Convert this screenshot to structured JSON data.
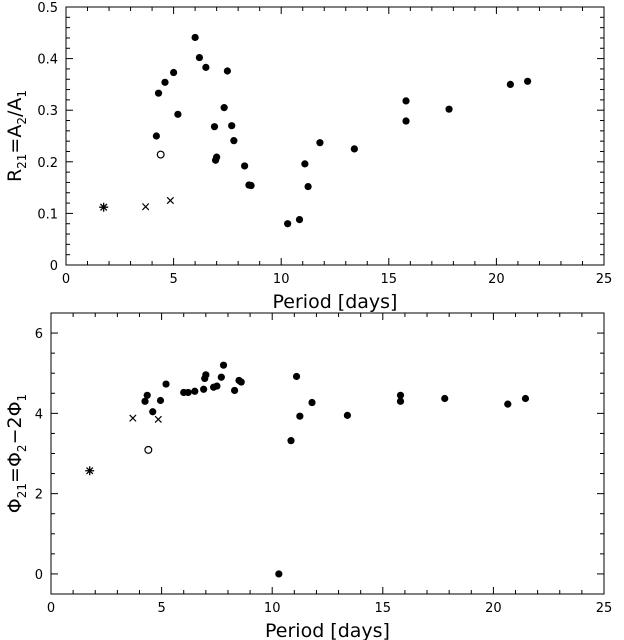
{
  "chart_data": [
    {
      "type": "scatter",
      "title": "",
      "xlabel": "Period [days]",
      "ylabel": {
        "parts": [
          [
            "R",
            ""
          ],
          [
            "21",
            "sub"
          ],
          [
            "=A",
            ""
          ],
          [
            "2",
            "sub"
          ],
          [
            "/A",
            ""
          ],
          [
            "1",
            "sub"
          ]
        ]
      },
      "xlim": [
        0,
        25
      ],
      "ylim": [
        0,
        0.5
      ],
      "xticks": [
        0,
        5,
        10,
        15,
        20,
        25
      ],
      "yticks": [
        0,
        0.1,
        0.2,
        0.3,
        0.4,
        0.5
      ],
      "xtick_labels": [
        "0",
        "5",
        "10",
        "15",
        "20",
        "25"
      ],
      "ytick_labels": [
        "0",
        "0.1",
        "0.2",
        "0.3",
        "0.4",
        "0.5"
      ],
      "grid": false,
      "series": [
        {
          "marker": "filled-circle",
          "points": [
            [
              4.2,
              0.25
            ],
            [
              4.3,
              0.333
            ],
            [
              4.6,
              0.354
            ],
            [
              5.0,
              0.373
            ],
            [
              5.2,
              0.292
            ],
            [
              6.0,
              0.441
            ],
            [
              6.2,
              0.402
            ],
            [
              6.5,
              0.383
            ],
            [
              6.9,
              0.268
            ],
            [
              6.95,
              0.203
            ],
            [
              7.0,
              0.209
            ],
            [
              7.35,
              0.305
            ],
            [
              7.5,
              0.376
            ],
            [
              7.7,
              0.27
            ],
            [
              7.8,
              0.241
            ],
            [
              8.3,
              0.192
            ],
            [
              8.5,
              0.155
            ],
            [
              8.6,
              0.154
            ],
            [
              10.3,
              0.08
            ],
            [
              10.85,
              0.088
            ],
            [
              11.1,
              0.196
            ],
            [
              11.25,
              0.152
            ],
            [
              11.8,
              0.237
            ],
            [
              13.4,
              0.225
            ],
            [
              15.8,
              0.318
            ],
            [
              15.8,
              0.279
            ],
            [
              17.8,
              0.302
            ],
            [
              20.65,
              0.35
            ],
            [
              21.45,
              0.356
            ]
          ]
        },
        {
          "marker": "open-circle",
          "points": [
            [
              4.4,
              0.214
            ]
          ]
        },
        {
          "marker": "cross",
          "points": [
            [
              3.7,
              0.113
            ],
            [
              4.85,
              0.125
            ]
          ]
        },
        {
          "marker": "star",
          "points": [
            [
              1.75,
              0.112
            ]
          ]
        }
      ]
    },
    {
      "type": "scatter",
      "title": "",
      "xlabel": "Period [days]",
      "ylabel": {
        "parts": [
          [
            "Φ",
            ""
          ],
          [
            "21",
            "sub"
          ],
          [
            "=Φ",
            ""
          ],
          [
            "2",
            "sub"
          ],
          [
            "−2Φ",
            ""
          ],
          [
            "1",
            "sub"
          ]
        ]
      },
      "xlim": [
        0,
        25
      ],
      "ylim": [
        -0.5,
        6.5
      ],
      "xticks": [
        0,
        5,
        10,
        15,
        20,
        25
      ],
      "yticks": [
        0,
        2,
        4,
        6
      ],
      "xtick_labels": [
        "0",
        "5",
        "10",
        "15",
        "20",
        "25"
      ],
      "ytick_labels": [
        "0",
        "2",
        "4",
        "6"
      ],
      "grid": false,
      "series": [
        {
          "marker": "filled-circle",
          "points": [
            [
              4.25,
              4.3
            ],
            [
              4.35,
              4.45
            ],
            [
              4.6,
              4.04
            ],
            [
              4.95,
              4.32
            ],
            [
              5.2,
              4.73
            ],
            [
              6.0,
              4.52
            ],
            [
              6.2,
              4.52
            ],
            [
              6.5,
              4.55
            ],
            [
              6.9,
              4.6
            ],
            [
              6.95,
              4.87
            ],
            [
              7.0,
              4.96
            ],
            [
              7.35,
              4.65
            ],
            [
              7.5,
              4.68
            ],
            [
              7.7,
              4.9
            ],
            [
              7.8,
              5.2
            ],
            [
              8.3,
              4.57
            ],
            [
              8.5,
              4.82
            ],
            [
              8.6,
              4.78
            ],
            [
              10.3,
              0.0
            ],
            [
              10.85,
              3.32
            ],
            [
              11.1,
              4.92
            ],
            [
              11.25,
              3.93
            ],
            [
              11.8,
              4.27
            ],
            [
              13.4,
              3.95
            ],
            [
              15.8,
              4.45
            ],
            [
              15.8,
              4.3
            ],
            [
              17.8,
              4.37
            ],
            [
              20.65,
              4.23
            ],
            [
              21.45,
              4.37
            ]
          ]
        },
        {
          "marker": "open-circle",
          "points": [
            [
              4.4,
              3.09
            ]
          ]
        },
        {
          "marker": "cross",
          "points": [
            [
              3.7,
              3.88
            ],
            [
              4.85,
              3.85
            ]
          ]
        },
        {
          "marker": "star",
          "points": [
            [
              1.75,
              2.57
            ]
          ]
        }
      ]
    }
  ]
}
